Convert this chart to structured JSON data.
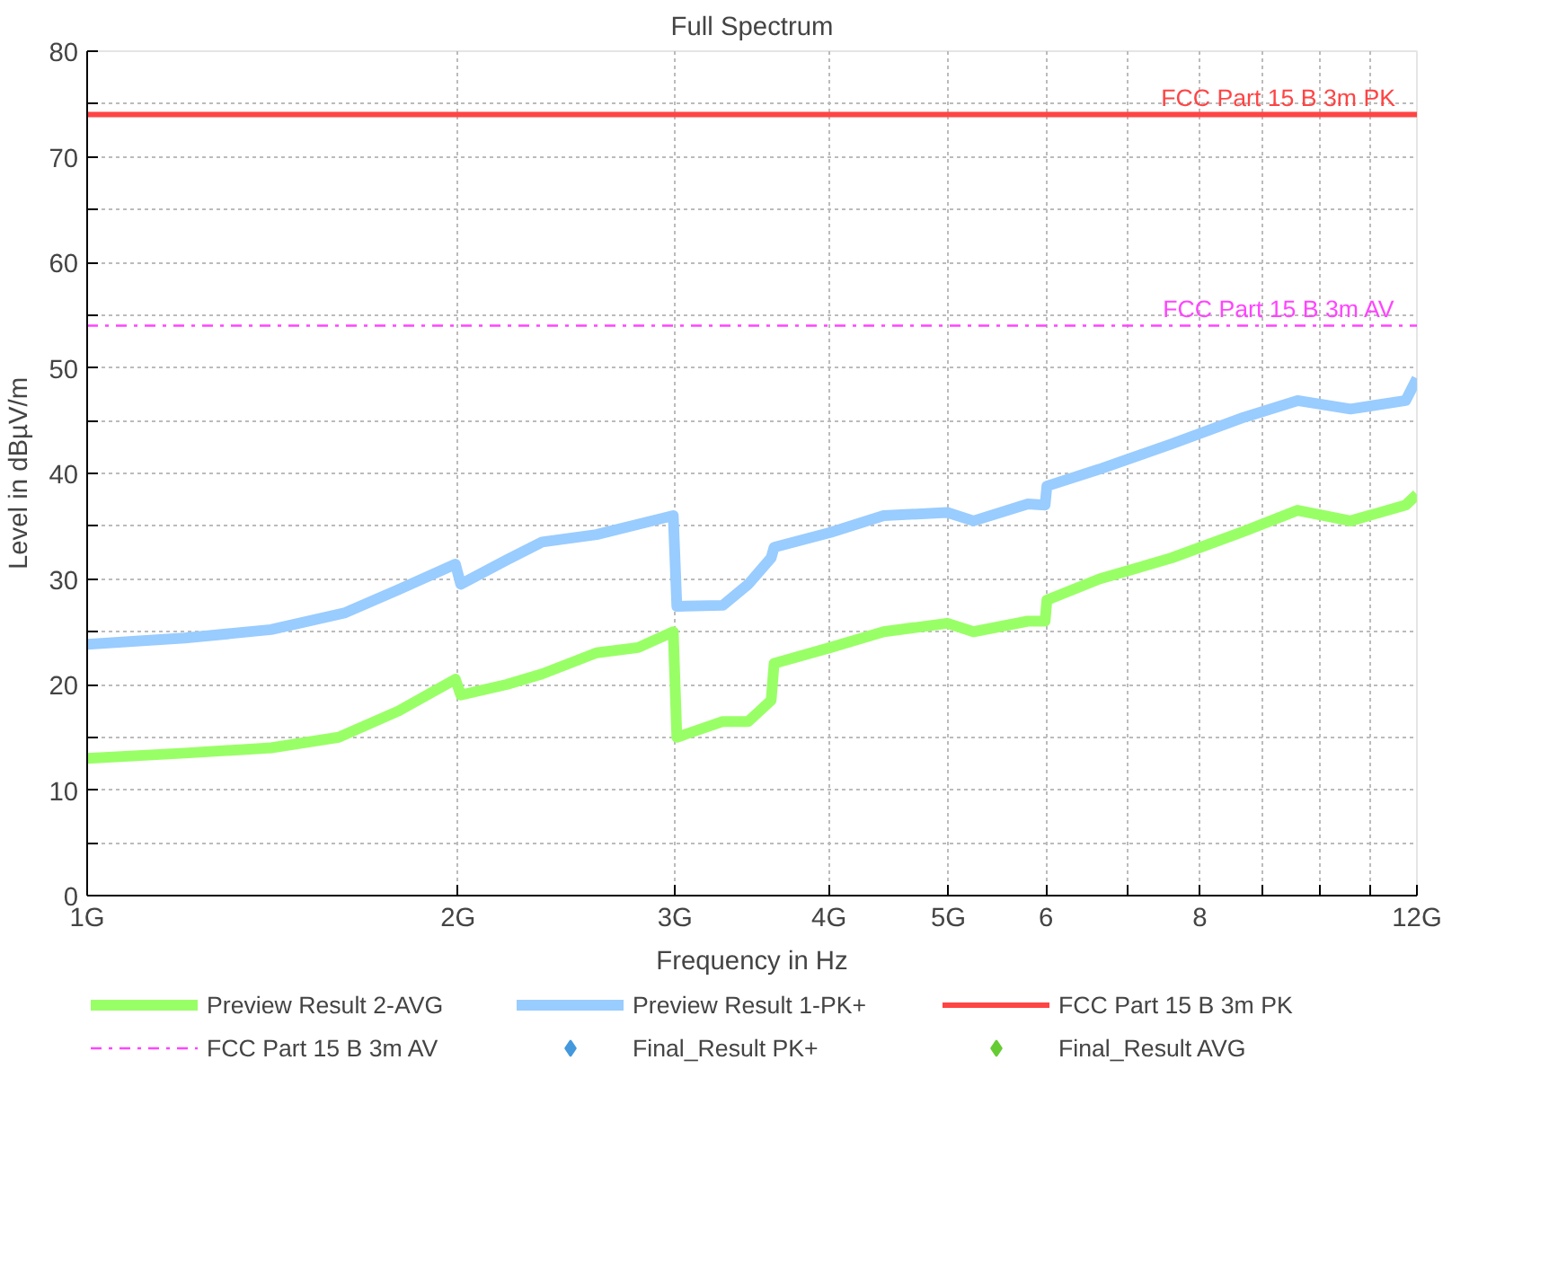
{
  "chart_data": {
    "type": "line",
    "title": "Full Spectrum",
    "xlabel": "Frequency in Hz",
    "ylabel": "Level in dBµV/m",
    "log": "x",
    "xlim": [
      1,
      12
    ],
    "xticks": [
      {
        "value": 1,
        "label": "1G"
      },
      {
        "value": 2,
        "label": "2G"
      },
      {
        "value": 3,
        "label": "3G"
      },
      {
        "value": 4,
        "label": "4G"
      },
      {
        "value": 5,
        "label": "5G"
      },
      {
        "value": 6,
        "label": "6"
      },
      {
        "value": 7,
        "label": null
      },
      {
        "value": 8,
        "label": "8"
      },
      {
        "value": 9,
        "label": null
      },
      {
        "value": 10,
        "label": null
      },
      {
        "value": 11,
        "label": null
      },
      {
        "value": 12,
        "label": "12G"
      }
    ],
    "ylim": [
      0,
      80
    ],
    "yticks": [
      0,
      {
        "value": 5,
        "label": null
      },
      10,
      {
        "value": 15,
        "label": null
      },
      20,
      {
        "value": 25,
        "label": null
      },
      30,
      {
        "value": 35,
        "label": null
      },
      40,
      {
        "value": 45,
        "label": null
      },
      50,
      {
        "value": 55,
        "label": null
      },
      60,
      {
        "value": 65,
        "label": null
      },
      70,
      {
        "value": 75,
        "label": null
      },
      80
    ],
    "grid": true,
    "legend": "bottom",
    "line_style": "solid",
    "series": [
      {
        "name": "Preview Result 2-AVG",
        "color": "#99ff66",
        "x": [
          1,
          1.2,
          1.41,
          1.6,
          1.79,
          1.99,
          2.01,
          2.19,
          2.34,
          2.59,
          2.8,
          2.99,
          3.01,
          3.28,
          3.44,
          3.59,
          3.61,
          4.01,
          4.43,
          4.99,
          5.24,
          5.8,
          5.99,
          6.01,
          6.63,
          7.59,
          8.68,
          9.6,
          10.6,
          11.75,
          12
        ],
        "values": [
          13,
          13.5,
          14,
          15,
          17.5,
          20.5,
          19,
          20,
          21,
          23,
          23.5,
          25,
          15,
          16.5,
          16.5,
          18.5,
          22,
          23.5,
          25,
          25.8,
          25,
          26,
          26,
          28,
          30,
          32,
          34.5,
          36.5,
          35.5,
          37,
          38
        ]
      },
      {
        "name": "Preview Result 1-PK+",
        "color": "#99ccff",
        "x": [
          1,
          1.2,
          1.41,
          1.62,
          1.79,
          1.99,
          2.01,
          2.19,
          2.34,
          2.59,
          2.99,
          3.01,
          3.28,
          3.44,
          3.59,
          3.61,
          4.01,
          4.43,
          4.99,
          5.24,
          5.8,
          5.99,
          6.01,
          6.63,
          7.59,
          8.68,
          9.6,
          10.6,
          11.75,
          12
        ],
        "values": [
          23.8,
          24.4,
          25.2,
          26.8,
          29,
          31.4,
          29.5,
          31.8,
          33.5,
          34.2,
          36,
          27.4,
          27.5,
          29.5,
          32,
          33,
          34.4,
          36,
          36.3,
          35.5,
          37.1,
          37,
          38.8,
          40.4,
          42.8,
          45.3,
          46.9,
          46.1,
          46.9,
          49
        ]
      },
      {
        "name": "Final_Result PK+",
        "type": "scatter",
        "marker": "diamond",
        "color": "#4499dd"
      },
      {
        "name": "Final_Result AVG",
        "type": "scatter",
        "marker": "diamond",
        "color": "#66cc33"
      }
    ],
    "ref_lines": [
      {
        "axis": "y",
        "value": 74,
        "label": "FCC Part 15 B 3m PK",
        "color": "#ff4444",
        "line_style": "solid"
      },
      {
        "axis": "y",
        "value": 54,
        "label": "FCC Part 15 B 3m AV",
        "color": "#ff44ff",
        "line_style": "dashdot"
      }
    ]
  }
}
